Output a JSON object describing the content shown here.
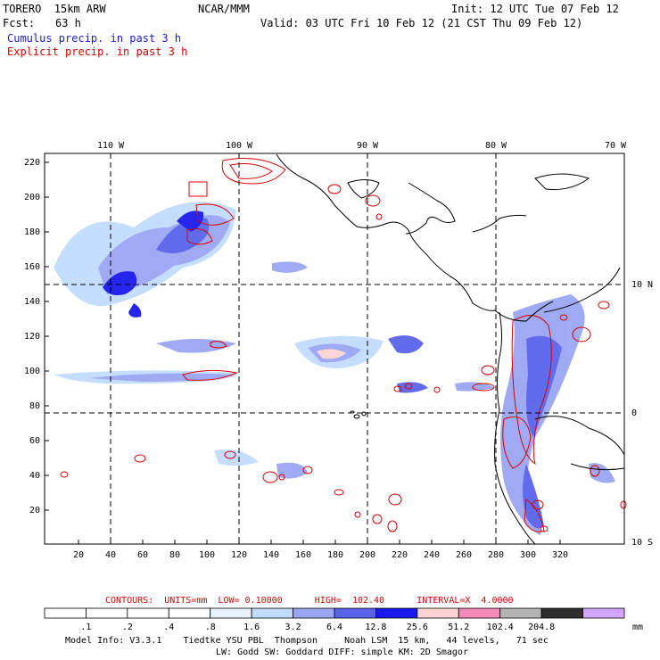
{
  "header": {
    "model": "TORERO  15km ARW",
    "org": "NCAR/MMM",
    "init": "Init: 12 UTC Tue 07 Feb 12",
    "fcst_label": "Fcst:",
    "fcst_value": "63 h",
    "valid": "Valid: 03 UTC Fri 10 Feb 12 (21 CST Thu 09 Feb 12)",
    "legend_cumulus": "Cumulus precip. in past 3 h",
    "legend_explicit": "Explicit precip. in past 3 h"
  },
  "colors": {
    "cumulus": "#1a1aff",
    "explicit": "#dd0000"
  },
  "map": {
    "lon_labels": [
      "110 W",
      "100 W",
      "90 W",
      "80 W",
      "70 W"
    ],
    "lat_labels": [
      "10 N",
      "0",
      "10 S"
    ],
    "y_ticks": [
      "220",
      "200",
      "180",
      "160",
      "140",
      "120",
      "100",
      "80",
      "60",
      "40",
      "20"
    ],
    "x_ticks": [
      "20",
      "40",
      "60",
      "80",
      "100",
      "120",
      "140",
      "160",
      "180",
      "200",
      "220",
      "240",
      "260",
      "280",
      "300",
      "320"
    ]
  },
  "contours": {
    "text": "CONTOURS:  UNITS=mm  LOW= 0.10000      HIGH=  102.40      INTERVAL=X  4.0000"
  },
  "colorbar": {
    "labels": [
      ".1",
      ".2",
      ".4",
      ".8",
      "1.6",
      "3.2",
      "6.4",
      "12.8",
      "25.6",
      "51.2",
      "102.4",
      "204.8"
    ],
    "unit": "mm",
    "colors": [
      "#ffffff",
      "#ffffff",
      "#ffffff",
      "#ffffff",
      "#e8f2ff",
      "#c2dcff",
      "#9aa6f2",
      "#5a64ea",
      "#1a1aee",
      "#ffd4d4",
      "#f58ab8",
      "#b4b4b4",
      "#2e2e2e",
      "#d2a6ff"
    ]
  },
  "footer": {
    "line1": "Model Info: V3.3.1    Tiedtke YSU PBL  Thompson     Noah LSM  15 km,   44 levels,   71 sec",
    "line2": "LW: Godd SW: Goddard DIFF: simple KM: 2D Smagor"
  }
}
